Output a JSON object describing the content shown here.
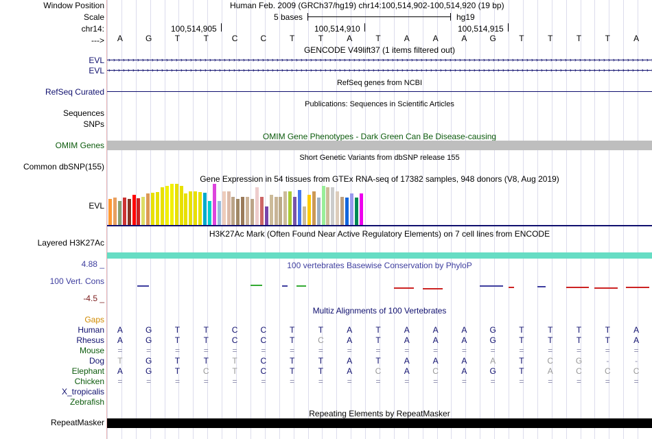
{
  "labels": {
    "window_position": "Window Position",
    "scale": "Scale",
    "chr": "chr14:",
    "arrow": "--->",
    "evl1": "EVL",
    "evl2": "EVL",
    "refseq": "RefSeq Curated",
    "sequences": "Sequences",
    "snps": "SNPs",
    "omim": "OMIM Genes",
    "common_dbsnp": "Common dbSNP(155)",
    "evl_gtex": "EVL",
    "layered": "Layered H3K27Ac",
    "cons_max": "4.88 _",
    "cons_label": "100 Vert. Cons",
    "cons_min": "-4.5 _",
    "gaps": "Gaps",
    "species": [
      "Human",
      "Rhesus",
      "Mouse",
      "Dog",
      "Elephant",
      "Chicken",
      "X_tropicalis",
      "Zebrafish"
    ],
    "repeatmasker": "RepeatMasker"
  },
  "header": {
    "position": "Human Feb. 2009 (GRCh37/hg19)    chr14:100,514,902-100,514,920 (19 bp)",
    "scale_text": "5 bases",
    "assembly": "hg19",
    "ticks": [
      "100,514,905",
      "100,514,910",
      "100,514,915"
    ]
  },
  "sequence": [
    "A",
    "G",
    "T",
    "T",
    "C",
    "C",
    "T",
    "T",
    "A",
    "T",
    "A",
    "A",
    "A",
    "G",
    "T",
    "T",
    "T",
    "T",
    "A"
  ],
  "tracks": {
    "gencode": "GENCODE V49lift37 (1 items filtered out)",
    "refseq": "RefSeq genes from NCBI",
    "publications": "Publications: Sequences in Scientific Articles",
    "omim": "OMIM Gene Phenotypes - Dark Green Can Be Disease-causing",
    "dbsnp": "Short Genetic Variants from dbSNP release 155",
    "gtex": "Gene Expression in 54 tissues from GTEx RNA-seq of 17382 samples, 948 donors (V8, Aug 2019)",
    "h3k27ac": "H3K27Ac Mark (Often Found Near Active Regulatory Elements) on 7 cell lines from ENCODE",
    "phylop": "100 vertebrates Basewise Conservation by PhyloP",
    "multiz": "Multiz Alignments of 100 Vertebrates",
    "repeat": "Repeating Elements by RepeatMasker"
  },
  "gtex_values": [
    0.35,
    0.37,
    0.32,
    0.37,
    0.35,
    0.4,
    0.36,
    0.38,
    0.42,
    0.43,
    0.44,
    0.5,
    0.52,
    0.55,
    0.55,
    0.52,
    0.42,
    0.45,
    0.45,
    0.44,
    0.43,
    0.32,
    0.55,
    0.32,
    0.45,
    0.45,
    0.38,
    0.35,
    0.38,
    0.38,
    0.35,
    0.5,
    0.38,
    0.25,
    0.4,
    0.38,
    0.38,
    0.45,
    0.45,
    0.38,
    0.47,
    0.25,
    0.4,
    0.45,
    0.37,
    0.52,
    0.5,
    0.5,
    0.45,
    0.38,
    0.37,
    0.42,
    0.37,
    0.42
  ],
  "gtex_colors": [
    "#ff9933",
    "#e8a060",
    "#8aa070",
    "#cc3333",
    "#883322",
    "#ff0000",
    "#cc2222",
    "#dddd66",
    "#dd9955",
    "#e8e000",
    "#e8e000",
    "#e8e000",
    "#f2f000",
    "#f2f000",
    "#e8e000",
    "#e8e000",
    "#e8e000",
    "#e8e000",
    "#e8e000",
    "#e8e000",
    "#00aacc",
    "#00cccc",
    "#dd44dd",
    "#99bbdd",
    "#eeccbb",
    "#ddbbaa",
    "#bba488",
    "#a08866",
    "#9a7a5a",
    "#ccb399",
    "#bba488",
    "#eecccc",
    "#cc6666",
    "#7744aa",
    "#ccbb99",
    "#c8b496",
    "#bbaa88",
    "#ccbb99",
    "#aacc33",
    "#7755aa",
    "#4477ee",
    "#ccbb99",
    "#ffcc00",
    "#cc9955",
    "#a0b0c0",
    "#99ee99",
    "#ccbb99",
    "#cccccc",
    "#ddccbb",
    "#bba080",
    "#1166dd",
    "#9999ee",
    "#008855",
    "#ee00ee"
  ],
  "phylop_segments": [
    {
      "from": 1.05,
      "to": 1.45,
      "v": 0.15
    },
    {
      "from": 5.0,
      "to": 5.4,
      "v": 0.35
    },
    {
      "from": 6.1,
      "to": 6.3,
      "v": 0.2
    },
    {
      "from": 6.6,
      "to": 6.95,
      "v": 0.3
    },
    {
      "from": 10.0,
      "to": 10.7,
      "v": -0.3
    },
    {
      "from": 11.0,
      "to": 11.7,
      "v": -0.55
    },
    {
      "from": 13.0,
      "to": 13.8,
      "v": 0.2
    },
    {
      "from": 14.0,
      "to": 14.2,
      "v": -0.15
    },
    {
      "from": 15.0,
      "to": 15.3,
      "v": 0.1
    },
    {
      "from": 16.0,
      "to": 16.8,
      "v": -0.15
    },
    {
      "from": 17.0,
      "to": 17.8,
      "v": -0.3
    },
    {
      "from": 18.1,
      "to": 18.9,
      "v": -0.15
    }
  ],
  "alignment": [
    [
      "A",
      "G",
      "T",
      "T",
      "C",
      "C",
      "T",
      "T",
      "A",
      "T",
      "A",
      "A",
      "A",
      "G",
      "T",
      "T",
      "T",
      "T",
      "A"
    ],
    [
      "A",
      "G",
      "T",
      "T",
      "C",
      "C",
      "T",
      "C",
      "A",
      "T",
      "A",
      "A",
      "A",
      "G",
      "T",
      "T",
      "T",
      "T",
      "A"
    ],
    [
      "=",
      "=",
      "=",
      "=",
      "=",
      "=",
      "=",
      "=",
      "=",
      "=",
      "=",
      "=",
      "=",
      "=",
      "=",
      "=",
      "=",
      "=",
      "="
    ],
    [
      "T",
      "G",
      "T",
      "T",
      "T",
      "C",
      "T",
      "T",
      "A",
      "T",
      "A",
      "A",
      "A",
      "A",
      "T",
      "C",
      "G",
      "-",
      "-"
    ],
    [
      "A",
      "G",
      "T",
      "C",
      "T",
      "C",
      "T",
      "T",
      "A",
      "C",
      "A",
      "C",
      "A",
      "G",
      "T",
      "A",
      "C",
      "C",
      "C"
    ],
    [
      "=",
      "=",
      "=",
      "=",
      "=",
      "=",
      "=",
      "=",
      "=",
      "=",
      "=",
      "=",
      "=",
      "=",
      "=",
      "=",
      "=",
      "=",
      "="
    ]
  ],
  "colors": {
    "navy": "#0f0f6e",
    "green": "#0b5a0b",
    "gaps": "#d08a00",
    "dark_red": "#7a1a1a",
    "cons_blue": "#3d3d9e",
    "h3k27ac": "#66ddc4",
    "omim_bar": "#bebebe",
    "gray": "#999999"
  }
}
